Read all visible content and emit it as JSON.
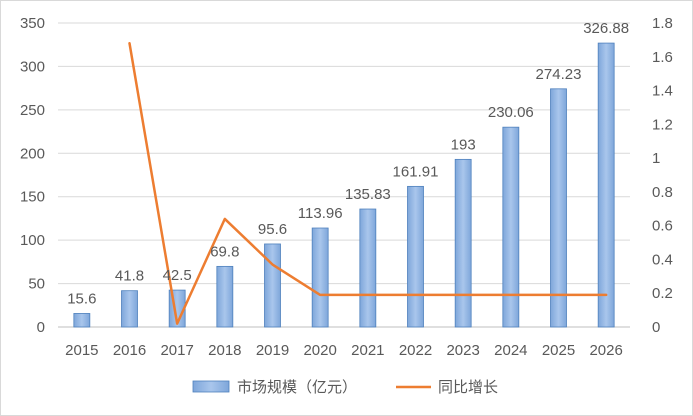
{
  "chart_data": {
    "type": "bar+line",
    "categories": [
      "2015",
      "2016",
      "2017",
      "2018",
      "2019",
      "2020",
      "2021",
      "2022",
      "2023",
      "2024",
      "2025",
      "2026"
    ],
    "series": [
      {
        "name": "市场规模（亿元）",
        "type": "bar",
        "axis": "left",
        "color": "#8fb4e3",
        "values": [
          15.6,
          41.8,
          42.5,
          69.8,
          95.6,
          113.96,
          135.83,
          161.91,
          193,
          230.06,
          274.23,
          326.88
        ],
        "labels": [
          "15.6",
          "41.8",
          "42.5",
          "69.8",
          "95.6",
          "113.96",
          "135.83",
          "161.91",
          "193",
          "230.06",
          "274.23",
          "326.88"
        ]
      },
      {
        "name": "同比增长",
        "type": "line",
        "axis": "right",
        "color": "#ed7d31",
        "values": [
          null,
          1.68,
          0.02,
          0.64,
          0.37,
          0.19,
          0.19,
          0.19,
          0.19,
          0.19,
          0.19,
          0.19
        ]
      }
    ],
    "y_left": {
      "min": 0,
      "max": 350,
      "ticks": [
        "0",
        "50",
        "100",
        "150",
        "200",
        "250",
        "300",
        "350"
      ]
    },
    "y_right": {
      "min": 0,
      "max": 1.8,
      "ticks": [
        "0",
        "0.2",
        "0.4",
        "0.6",
        "0.8",
        "1",
        "1.2",
        "1.4",
        "1.6",
        "1.8"
      ]
    },
    "grid": true,
    "legend": "bottom"
  }
}
